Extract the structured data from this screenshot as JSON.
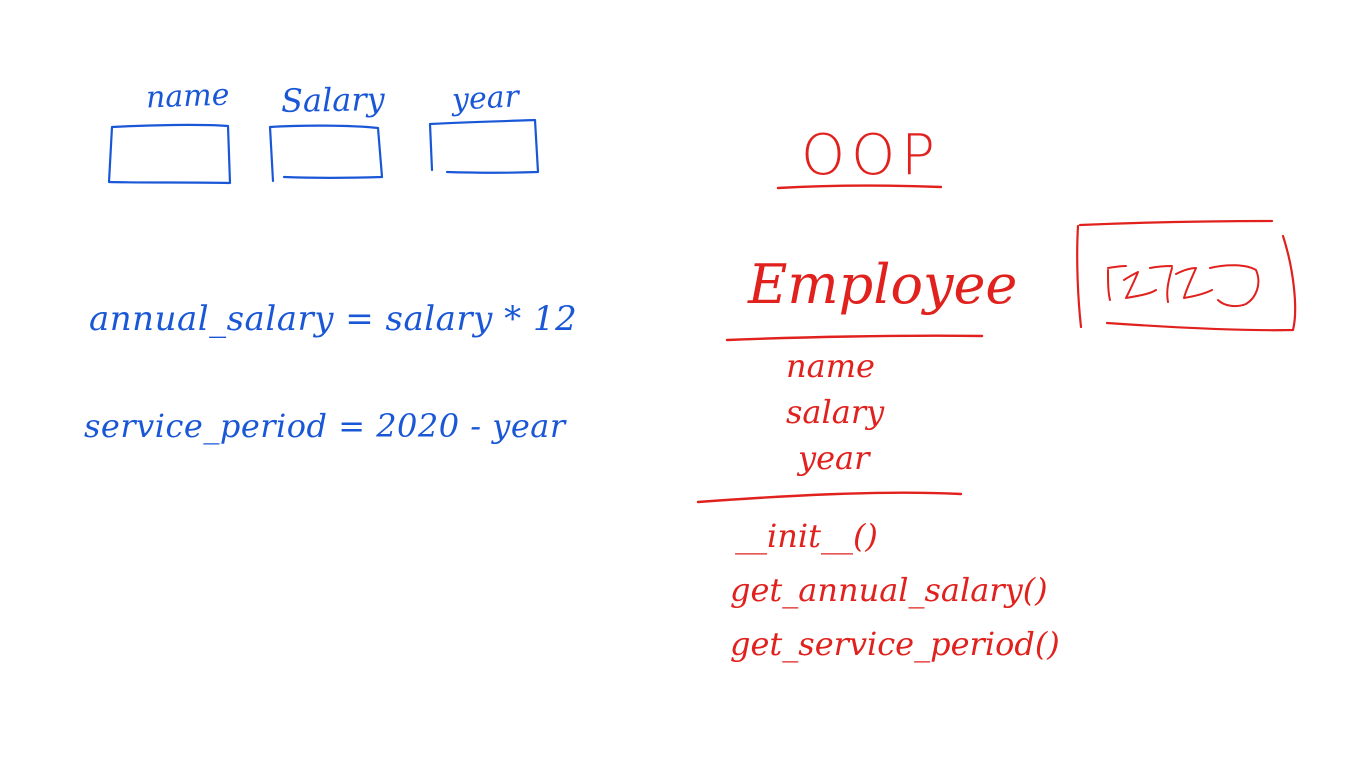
{
  "colors": {
    "blue_ink": "#1a57d6",
    "red_ink": "#e0211d",
    "background": "#ffffff"
  },
  "input_fields": [
    {
      "label": "name"
    },
    {
      "label": "Salary"
    },
    {
      "label": "year"
    }
  ],
  "formulas": [
    "annual_salary = salary * 12",
    "service_period = 2020 - year"
  ],
  "class_diagram": {
    "title": "OOP",
    "class_name": "Employee",
    "attributes": [
      "name",
      "salary",
      "year"
    ],
    "methods": [
      "__init__()",
      "get_annual_salary()",
      "get_service_period()"
    ]
  },
  "object_box": {
    "content": "scribble"
  }
}
